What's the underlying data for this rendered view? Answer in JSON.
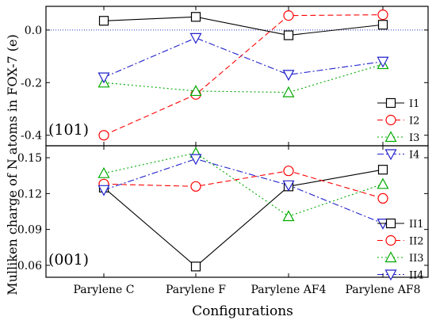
{
  "chart_data": [
    {
      "type": "line",
      "panel_label": "(101)",
      "ylabel": "Mulliken charge of N atoms in FOX-7 (e)",
      "categories": [
        "Parylene C",
        "Parylene F",
        "Parylene AF4",
        "Parylene AF8"
      ],
      "ylim": [
        -0.44,
        0.09
      ],
      "yticks": [
        -0.4,
        -0.2,
        0.0
      ],
      "ytick_labels": [
        "-0.4",
        "-0.2",
        "0.0"
      ],
      "reference_line": 0.0,
      "legend_position": "right",
      "series": [
        {
          "name": "I1",
          "values": [
            0.035,
            0.05,
            -0.02,
            0.02
          ],
          "color": "#000000",
          "dash": "",
          "marker": "square"
        },
        {
          "name": "I2",
          "values": [
            -0.4,
            -0.245,
            0.055,
            0.058
          ],
          "color": "#ff0000",
          "dash": "7,4",
          "marker": "circle"
        },
        {
          "name": "I3",
          "values": [
            -0.2,
            -0.232,
            -0.237,
            -0.13
          ],
          "color": "#00aa00",
          "dash": "2,3",
          "marker": "triangle-up"
        },
        {
          "name": "I4",
          "values": [
            -0.18,
            -0.03,
            -0.17,
            -0.12
          ],
          "color": "#2222cc",
          "dash": "8,3,2,3",
          "marker": "triangle-down"
        }
      ]
    },
    {
      "type": "line",
      "panel_label": "(001)",
      "xlabel": "Configurations",
      "categories": [
        "Parylene C",
        "Parylene F",
        "Parylene AF4",
        "Parylene AF8"
      ],
      "ylim": [
        0.05,
        0.16
      ],
      "yticks": [
        0.06,
        0.09,
        0.12,
        0.15
      ],
      "ytick_labels": [
        "0.06",
        "0.09",
        "0.12",
        "0.15"
      ],
      "legend_position": "bottom-right",
      "series": [
        {
          "name": "II1",
          "values": [
            0.125,
            0.059,
            0.126,
            0.14
          ],
          "color": "#000000",
          "dash": "",
          "marker": "square"
        },
        {
          "name": "II2",
          "values": [
            0.128,
            0.126,
            0.139,
            0.116
          ],
          "color": "#ff0000",
          "dash": "7,4",
          "marker": "circle"
        },
        {
          "name": "II3",
          "values": [
            0.137,
            0.154,
            0.101,
            0.128
          ],
          "color": "#00aa00",
          "dash": "2,3",
          "marker": "triangle-up"
        },
        {
          "name": "II4",
          "values": [
            0.123,
            0.149,
            0.127,
            0.095
          ],
          "color": "#2222cc",
          "dash": "8,3,2,3",
          "marker": "triangle-down"
        }
      ]
    }
  ]
}
